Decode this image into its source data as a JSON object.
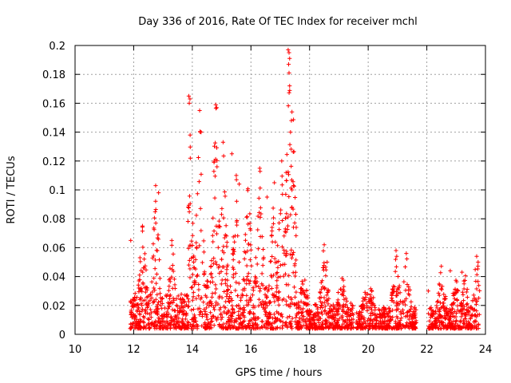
{
  "chart_data": {
    "type": "scatter",
    "title": "Day 336 of 2016, Rate Of TEC Index for receiver mchl",
    "xlabel": "GPS time / hours",
    "ylabel": "ROTI / TECUs",
    "xlim": [
      10,
      24
    ],
    "ylim": [
      0,
      0.2
    ],
    "x_ticks": [
      10,
      12,
      14,
      16,
      18,
      20,
      22,
      24
    ],
    "y_ticks": [
      0,
      0.02,
      0.04,
      0.06,
      0.08,
      0.1,
      0.12,
      0.14,
      0.16,
      0.18,
      0.2
    ],
    "x_tick_labels": [
      "10",
      "12",
      "14",
      "16",
      "18",
      "20",
      "22",
      "24"
    ],
    "y_tick_labels": [
      "0",
      "0.02",
      "0.04",
      "0.06",
      "0.08",
      "0.1",
      "0.12",
      "0.14",
      "0.16",
      "0.18",
      "0.2"
    ],
    "grid": true,
    "marker": "+",
    "series": [
      {
        "name": "ROTI",
        "color": "#ff0000",
        "segments": [
          {
            "start": 11.88,
            "end": 13.88,
            "base": 0.025,
            "peaks": [
              [
                12.3,
                0.075
              ],
              [
                12.75,
                0.103
              ],
              [
                13.3,
                0.065
              ]
            ]
          },
          {
            "start": 13.85,
            "end": 15.6,
            "base": 0.035,
            "peaks": [
              [
                13.9,
                0.166
              ],
              [
                14.25,
                0.155
              ],
              [
                14.8,
                0.159
              ],
              [
                15.05,
                0.133
              ],
              [
                15.5,
                0.11
              ]
            ]
          },
          {
            "start": 15.6,
            "end": 17.55,
            "base": 0.032,
            "peaks": [
              [
                15.9,
                0.105
              ],
              [
                16.3,
                0.115
              ],
              [
                16.8,
                0.105
              ],
              [
                17.05,
                0.12
              ],
              [
                17.3,
                0.197
              ],
              [
                17.45,
                0.154
              ]
            ]
          },
          {
            "start": 17.55,
            "end": 19.5,
            "base": 0.018,
            "peaks": [
              [
                17.8,
                0.045
              ],
              [
                18.5,
                0.062
              ],
              [
                19.1,
                0.04
              ]
            ]
          },
          {
            "start": 19.6,
            "end": 20.3,
            "base": 0.012,
            "peaks": [
              [
                19.9,
                0.035
              ],
              [
                20.1,
                0.03
              ]
            ]
          },
          {
            "start": 20.35,
            "end": 21.65,
            "base": 0.015,
            "peaks": [
              [
                20.95,
                0.058
              ],
              [
                21.3,
                0.056
              ]
            ]
          },
          {
            "start": 22.05,
            "end": 23.8,
            "base": 0.015,
            "peaks": [
              [
                22.5,
                0.048
              ],
              [
                23.0,
                0.04
              ],
              [
                23.3,
                0.042
              ],
              [
                23.7,
                0.054
              ]
            ]
          }
        ],
        "samples_per_hour": 210,
        "points": [
          [
            11.9,
            0.065
          ],
          [
            12.3,
            0.075
          ],
          [
            12.75,
            0.103
          ],
          [
            12.85,
            0.098
          ],
          [
            13.3,
            0.065
          ],
          [
            13.88,
            0.165
          ],
          [
            13.92,
            0.163
          ],
          [
            14.25,
            0.155
          ],
          [
            14.3,
            0.14
          ],
          [
            14.8,
            0.159
          ],
          [
            14.83,
            0.157
          ],
          [
            15.05,
            0.133
          ],
          [
            15.35,
            0.125
          ],
          [
            15.5,
            0.11
          ],
          [
            15.6,
            0.104
          ],
          [
            16.3,
            0.115
          ],
          [
            16.55,
            0.095
          ],
          [
            16.8,
            0.105
          ],
          [
            17.05,
            0.12
          ],
          [
            17.2,
            0.112
          ],
          [
            17.27,
            0.197
          ],
          [
            17.3,
            0.195
          ],
          [
            17.32,
            0.191
          ],
          [
            17.3,
            0.181
          ],
          [
            17.32,
            0.172
          ],
          [
            17.4,
            0.154
          ],
          [
            17.38,
            0.148
          ],
          [
            17.35,
            0.14
          ],
          [
            17.4,
            0.1
          ],
          [
            17.4,
            0.088
          ],
          [
            18.5,
            0.062
          ],
          [
            18.6,
            0.05
          ],
          [
            20.95,
            0.058
          ],
          [
            21.3,
            0.056
          ],
          [
            22.05,
            0.03
          ],
          [
            23.7,
            0.054
          ],
          [
            23.75,
            0.05
          ],
          [
            23.2,
            0.043
          ],
          [
            22.8,
            0.044
          ]
        ]
      }
    ]
  }
}
